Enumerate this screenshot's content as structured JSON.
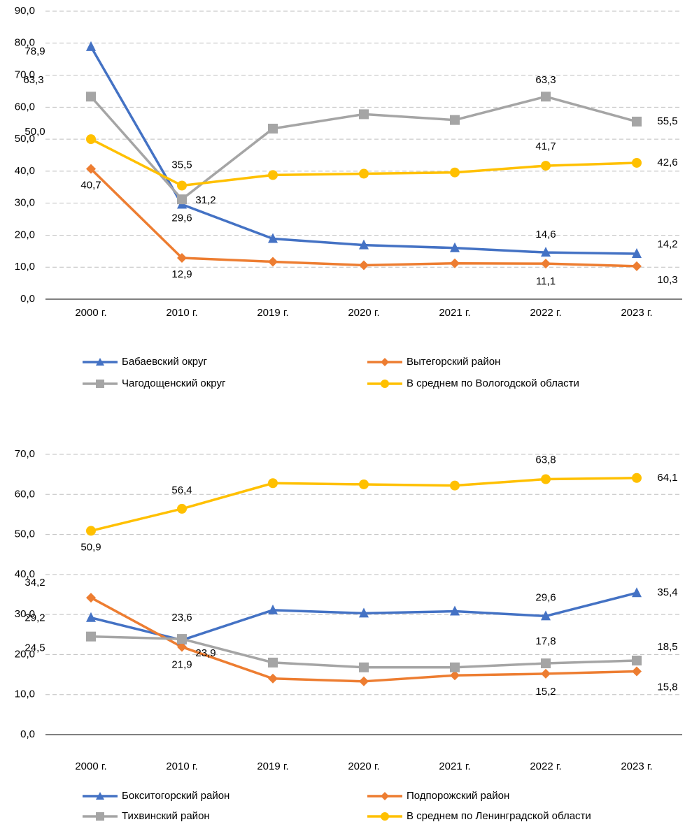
{
  "chart_data": [
    {
      "type": "line",
      "categories": [
        "2000 г.",
        "2010 г.",
        "2019 г.",
        "2020 г.",
        "2021 г.",
        "2022 г.",
        "2023 г."
      ],
      "ylim": [
        0,
        90
      ],
      "yticks": [
        {
          "value": 0,
          "label": "0,0"
        },
        {
          "value": 10,
          "label": "10,0"
        },
        {
          "value": 20,
          "label": "20,0"
        },
        {
          "value": 30,
          "label": "30,0"
        },
        {
          "value": 40,
          "label": "40,0"
        },
        {
          "value": 50,
          "label": "50,0"
        },
        {
          "value": 60,
          "label": "60,0"
        },
        {
          "value": 70,
          "label": "70,0"
        },
        {
          "value": 80,
          "label": "80,0"
        },
        {
          "value": 90,
          "label": "90,0"
        }
      ],
      "grid": true,
      "series": [
        {
          "name": "Бабаевский округ",
          "color": "#4472c4",
          "marker": "triangle",
          "values": [
            78.9,
            29.6,
            18.9,
            16.9,
            16.0,
            14.6,
            14.2
          ],
          "value_labels": [
            "78,9",
            "29,6",
            null,
            null,
            null,
            "14,6",
            "14,2"
          ]
        },
        {
          "name": "Вытегорский район",
          "color": "#ed7d31",
          "marker": "diamond",
          "values": [
            40.7,
            12.9,
            11.7,
            10.6,
            11.2,
            11.1,
            10.3
          ],
          "value_labels": [
            "40,7",
            "12,9",
            null,
            null,
            null,
            "11,1",
            "10,3"
          ]
        },
        {
          "name": "Чагодощенский округ",
          "color": "#a5a5a5",
          "marker": "square",
          "values": [
            63.3,
            31.2,
            53.3,
            57.8,
            56.0,
            63.3,
            55.5
          ],
          "value_labels": [
            "63,3",
            "31,2",
            null,
            null,
            null,
            "63,3",
            "55,5"
          ]
        },
        {
          "name": "В среднем по Вологодской области",
          "color": "#ffc000",
          "marker": "circle",
          "values": [
            50.0,
            35.5,
            38.8,
            39.2,
            39.6,
            41.7,
            42.6
          ],
          "value_labels": [
            "50,0",
            "35,5",
            null,
            null,
            null,
            "41,7",
            "42,6"
          ]
        }
      ]
    },
    {
      "type": "line",
      "categories": [
        "2000 г.",
        "2010 г.",
        "2019 г.",
        "2020 г.",
        "2021 г.",
        "2022 г.",
        "2023 г."
      ],
      "ylim": [
        0,
        70
      ],
      "yticks": [
        {
          "value": 0,
          "label": "0,0"
        },
        {
          "value": 10,
          "label": "10,0"
        },
        {
          "value": 20,
          "label": "20,0"
        },
        {
          "value": 30,
          "label": "30,0"
        },
        {
          "value": 40,
          "label": "40,0"
        },
        {
          "value": 50,
          "label": "50,0"
        },
        {
          "value": 60,
          "label": "60,0"
        },
        {
          "value": 70,
          "label": "70,0"
        }
      ],
      "grid": true,
      "series": [
        {
          "name": "Бокситогорский район",
          "color": "#4472c4",
          "marker": "triangle",
          "values": [
            29.2,
            23.6,
            31.1,
            30.3,
            30.8,
            29.6,
            35.4
          ],
          "value_labels": [
            "29,2",
            "23,6",
            null,
            null,
            null,
            "29,6",
            "35,4"
          ]
        },
        {
          "name": "Подпорожский район",
          "color": "#ed7d31",
          "marker": "diamond",
          "values": [
            34.2,
            21.9,
            14.0,
            13.3,
            14.8,
            15.2,
            15.8
          ],
          "value_labels": [
            "34,2",
            "21,9",
            null,
            null,
            null,
            "15,2",
            "15,8"
          ]
        },
        {
          "name": "Тихвинский район",
          "color": "#a5a5a5",
          "marker": "square",
          "values": [
            24.5,
            23.9,
            18.0,
            16.8,
            16.8,
            17.8,
            18.5
          ],
          "value_labels": [
            "24,5",
            "23,9",
            null,
            null,
            null,
            "17,8",
            "18,5"
          ]
        },
        {
          "name": "В среднем по Ленинградской области",
          "color": "#ffc000",
          "marker": "circle",
          "values": [
            50.9,
            56.4,
            62.8,
            62.5,
            62.2,
            63.8,
            64.1
          ],
          "value_labels": [
            "50,9",
            "56,4",
            null,
            null,
            null,
            "63,8",
            "64,1"
          ]
        }
      ]
    }
  ]
}
